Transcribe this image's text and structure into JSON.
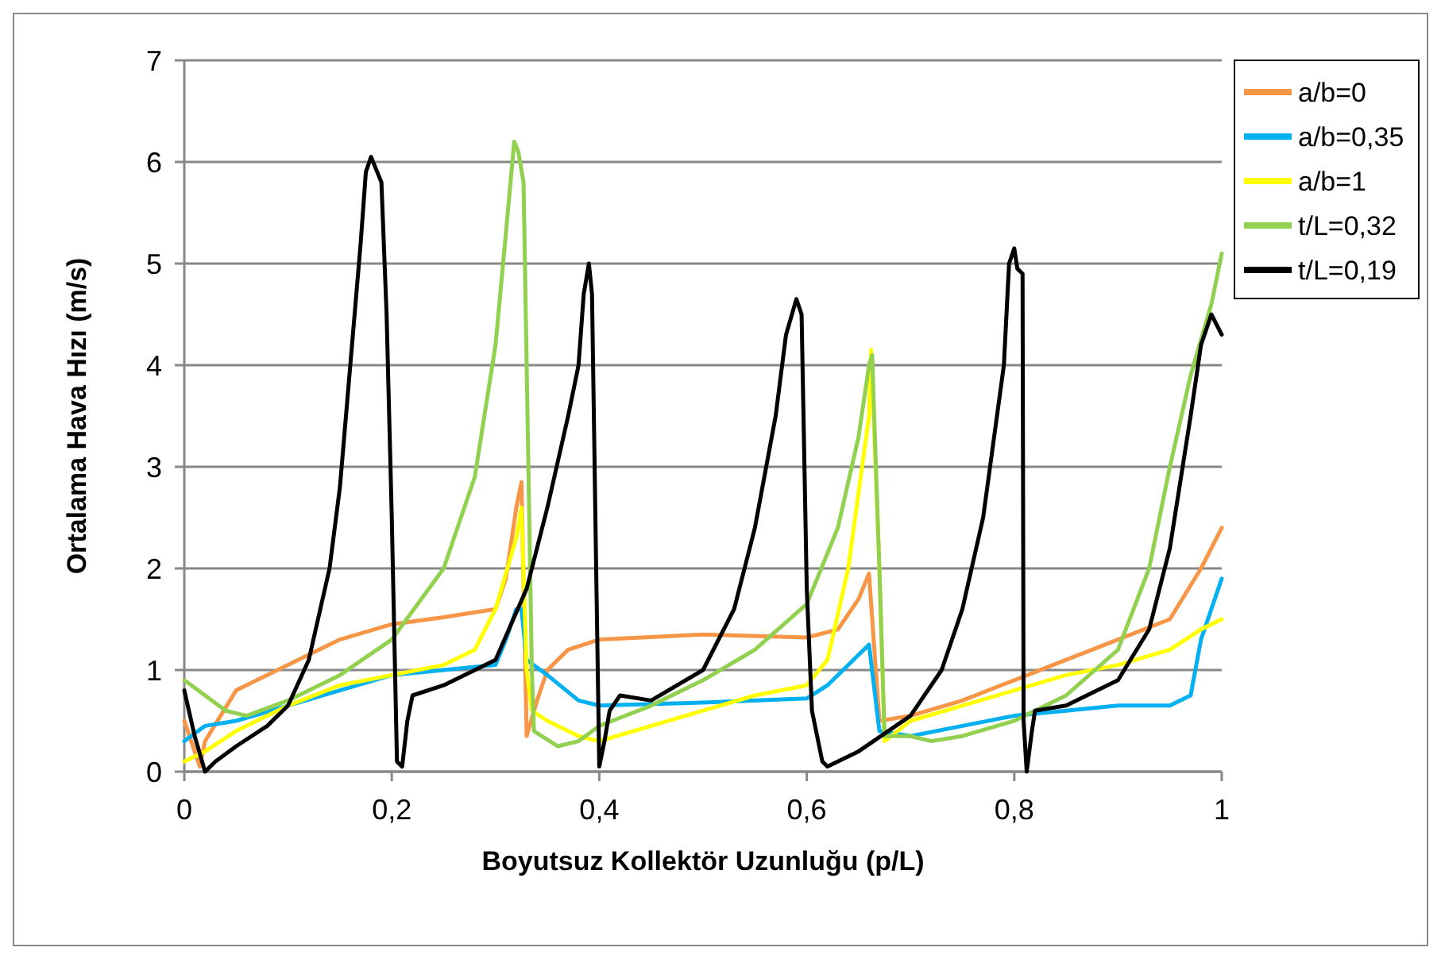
{
  "chart_data": {
    "type": "line",
    "xlabel": "Boyutsuz Kollektör Uzunluğu (p/L)",
    "ylabel": "Ortalama Hava Hızı (m/s)",
    "xlim": [
      0,
      1
    ],
    "xticks": [
      0,
      {
        "value": 0.2,
        "label": "0,2"
      },
      {
        "value": 0.4,
        "label": "0,4"
      },
      {
        "value": 0.6,
        "label": "0,6"
      },
      {
        "value": 0.8,
        "label": "0,8"
      },
      1
    ],
    "ylim": [
      0,
      7
    ],
    "yticks": [
      0,
      1,
      2,
      3,
      4,
      5,
      6,
      7
    ],
    "grid": "y",
    "legend": "right",
    "marker": "none",
    "line_style": "solid",
    "series": [
      {
        "name": "a/b=0",
        "color": "#f79646",
        "x": [
          0,
          0.015,
          0.02,
          0.05,
          0.1,
          0.15,
          0.2,
          0.25,
          0.3,
          0.31,
          0.32,
          0.325,
          0.33,
          0.34,
          0.35,
          0.37,
          0.4,
          0.5,
          0.6,
          0.63,
          0.65,
          0.66,
          0.67,
          0.7,
          0.75,
          0.8,
          0.85,
          0.9,
          0.95,
          0.98,
          1
        ],
        "values": [
          0.5,
          0.05,
          0.3,
          0.8,
          1.05,
          1.3,
          1.45,
          1.52,
          1.6,
          1.9,
          2.6,
          2.85,
          0.35,
          0.7,
          1.0,
          1.2,
          1.3,
          1.35,
          1.32,
          1.4,
          1.7,
          1.95,
          0.5,
          0.55,
          0.7,
          0.9,
          1.1,
          1.3,
          1.5,
          2.0,
          2.4
        ]
      },
      {
        "name": "a/b=0,35",
        "color": "#00b0f0",
        "x": [
          0,
          0.02,
          0.05,
          0.1,
          0.15,
          0.2,
          0.25,
          0.3,
          0.31,
          0.32,
          0.325,
          0.33,
          0.35,
          0.38,
          0.4,
          0.5,
          0.6,
          0.62,
          0.65,
          0.66,
          0.67,
          0.7,
          0.75,
          0.8,
          0.85,
          0.9,
          0.95,
          0.97,
          0.98,
          1
        ],
        "values": [
          0.3,
          0.45,
          0.5,
          0.65,
          0.8,
          0.95,
          1.0,
          1.05,
          1.3,
          1.6,
          1.6,
          1.1,
          0.95,
          0.7,
          0.65,
          0.68,
          0.72,
          0.85,
          1.15,
          1.25,
          0.4,
          0.35,
          0.45,
          0.55,
          0.6,
          0.65,
          0.65,
          0.75,
          1.3,
          1.9
        ]
      },
      {
        "name": "a/b=1",
        "color": "#ffff00",
        "x": [
          0,
          0.02,
          0.05,
          0.1,
          0.15,
          0.2,
          0.25,
          0.28,
          0.3,
          0.32,
          0.325,
          0.33,
          0.335,
          0.35,
          0.38,
          0.4,
          0.45,
          0.5,
          0.55,
          0.6,
          0.62,
          0.64,
          0.66,
          0.662,
          0.67,
          0.675,
          0.7,
          0.75,
          0.8,
          0.85,
          0.9,
          0.95,
          0.98,
          1
        ],
        "values": [
          0.1,
          0.2,
          0.4,
          0.65,
          0.85,
          0.95,
          1.05,
          1.2,
          1.6,
          2.3,
          2.6,
          1.0,
          0.6,
          0.5,
          0.35,
          0.3,
          0.45,
          0.6,
          0.75,
          0.85,
          1.1,
          2.0,
          3.5,
          4.15,
          2.0,
          0.3,
          0.5,
          0.65,
          0.8,
          0.95,
          1.05,
          1.2,
          1.4,
          1.5
        ]
      },
      {
        "name": "t/L=0,32",
        "color": "#92d050",
        "x": [
          0,
          0.02,
          0.04,
          0.06,
          0.1,
          0.15,
          0.2,
          0.25,
          0.28,
          0.3,
          0.31,
          0.318,
          0.322,
          0.327,
          0.335,
          0.337,
          0.36,
          0.38,
          0.4,
          0.45,
          0.5,
          0.55,
          0.6,
          0.63,
          0.65,
          0.66,
          0.663,
          0.67,
          0.675,
          0.7,
          0.72,
          0.75,
          0.8,
          0.85,
          0.9,
          0.93,
          0.95,
          0.97,
          0.99,
          1
        ],
        "values": [
          0.9,
          0.75,
          0.6,
          0.55,
          0.7,
          0.95,
          1.3,
          2.0,
          2.9,
          4.2,
          5.3,
          6.2,
          6.1,
          5.8,
          1.0,
          0.4,
          0.25,
          0.3,
          0.45,
          0.65,
          0.9,
          1.2,
          1.65,
          2.4,
          3.3,
          4.0,
          4.1,
          2.0,
          0.35,
          0.35,
          0.3,
          0.35,
          0.5,
          0.75,
          1.2,
          2.0,
          3.0,
          3.9,
          4.6,
          5.1
        ]
      },
      {
        "name": "t/L=0,19",
        "color": "#000000",
        "x": [
          0,
          0.01,
          0.02,
          0.03,
          0.05,
          0.08,
          0.1,
          0.12,
          0.14,
          0.15,
          0.16,
          0.17,
          0.175,
          0.18,
          0.19,
          0.195,
          0.2,
          0.205,
          0.21,
          0.215,
          0.22,
          0.25,
          0.3,
          0.33,
          0.35,
          0.37,
          0.38,
          0.385,
          0.39,
          0.393,
          0.397,
          0.4,
          0.405,
          0.41,
          0.42,
          0.45,
          0.5,
          0.53,
          0.55,
          0.57,
          0.58,
          0.59,
          0.595,
          0.6,
          0.605,
          0.615,
          0.62,
          0.65,
          0.7,
          0.73,
          0.75,
          0.77,
          0.79,
          0.795,
          0.8,
          0.803,
          0.808,
          0.809,
          0.812,
          0.817,
          0.82,
          0.85,
          0.9,
          0.93,
          0.95,
          0.97,
          0.98,
          0.99,
          1
        ],
        "values": [
          0.8,
          0.35,
          0.0,
          0.1,
          0.25,
          0.45,
          0.65,
          1.1,
          2.0,
          2.8,
          4.0,
          5.2,
          5.9,
          6.05,
          5.8,
          4.5,
          2.5,
          0.1,
          0.05,
          0.5,
          0.75,
          0.85,
          1.1,
          1.8,
          2.6,
          3.5,
          4.0,
          4.7,
          5.0,
          4.7,
          2.0,
          0.05,
          0.3,
          0.6,
          0.75,
          0.7,
          1.0,
          1.6,
          2.4,
          3.5,
          4.3,
          4.65,
          4.5,
          1.8,
          0.6,
          0.1,
          0.05,
          0.2,
          0.55,
          1.0,
          1.6,
          2.5,
          4.0,
          5.0,
          5.15,
          4.95,
          4.9,
          0.5,
          0.0,
          0.4,
          0.6,
          0.65,
          0.9,
          1.4,
          2.2,
          3.5,
          4.2,
          4.5,
          4.3
        ]
      }
    ]
  }
}
